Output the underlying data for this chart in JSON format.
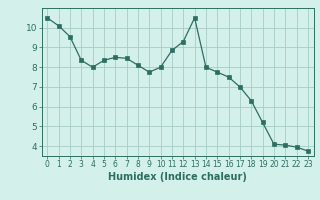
{
  "x": [
    0,
    1,
    2,
    3,
    4,
    5,
    6,
    7,
    8,
    9,
    10,
    11,
    12,
    13,
    14,
    15,
    16,
    17,
    18,
    19,
    20,
    21,
    22,
    23
  ],
  "y": [
    10.5,
    10.1,
    9.55,
    8.35,
    8.0,
    8.35,
    8.5,
    8.45,
    8.1,
    7.75,
    8.0,
    8.85,
    9.3,
    10.5,
    8.0,
    7.75,
    7.5,
    7.0,
    6.3,
    5.2,
    4.1,
    4.05,
    3.95,
    3.75
  ],
  "line_color": "#2d6e63",
  "marker": "s",
  "marker_size": 2.5,
  "bg_color": "#d4f0eb",
  "grid_color": "#a8ccc6",
  "xlabel": "Humidex (Indice chaleur)",
  "ylabel_ticks": [
    4,
    5,
    6,
    7,
    8,
    9,
    10
  ],
  "xlim": [
    -0.5,
    23.5
  ],
  "ylim": [
    3.5,
    11.0
  ],
  "tick_color": "#2d6e63",
  "axis_color": "#2d6e63",
  "x_fontsize": 5.5,
  "y_fontsize": 6.5,
  "xlabel_fontsize": 7.0
}
